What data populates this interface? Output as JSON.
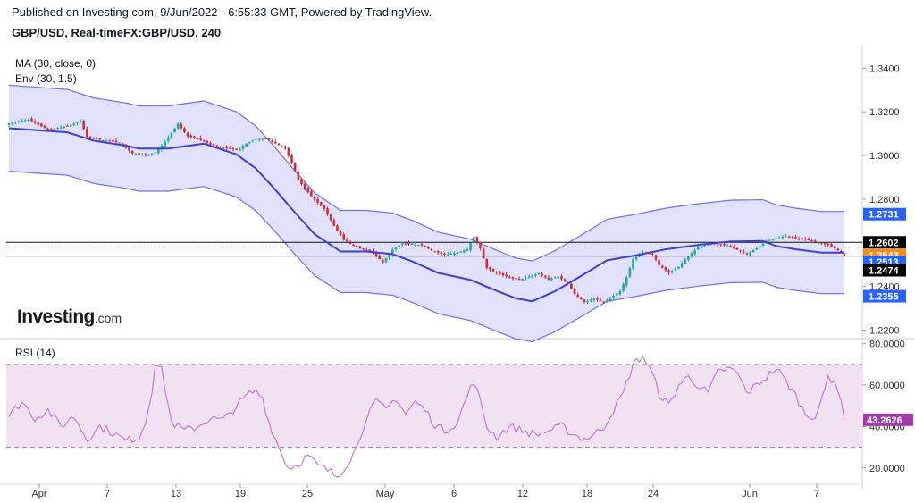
{
  "header": {
    "published": "Published on Investing.com, 9/Jun/2022 - 6:55:33 GMT, Powered by TradingView.",
    "symbol": "GBP/USD, Real-timeFX:GBP/USD, 240"
  },
  "indicators": {
    "ma_label": "MA (30, close, 0)",
    "env_label": "Env (30, 1.5)",
    "rsi_label": "RSI (14)"
  },
  "logo": {
    "main": "Investing",
    "suffix": ".com"
  },
  "colors": {
    "up": "#22ab94",
    "down": "#cc2f3c",
    "ma": "#3f3fd0",
    "envelope_line": "#6f6ff2",
    "envelope_fill": "#dcdcfb",
    "rsi_line": "#c77bd1",
    "rsi_band": "#f1e2f2",
    "last_price": "#ff8c1a",
    "rsi_value_bg": "#a33aaa",
    "marker_dark": "#000000",
    "marker_blue": "#2962ff"
  },
  "chart_data": [
    {
      "type": "candlestick",
      "title": "GBP/USD, Real-timeFX:GBP/USD, 240",
      "x_tick_labels": [
        "Apr",
        "7",
        "13",
        "19",
        "25",
        "May",
        "6",
        "12",
        "18",
        "24",
        "Jun",
        "7"
      ],
      "y_tick_labels": [
        "1.3400",
        "1.3200",
        "1.3000",
        "1.2800",
        "1.2600",
        "1.2400",
        "1.2200"
      ],
      "ylim": [
        1.2165,
        1.3475
      ],
      "price_markers": [
        {
          "label": "1.2731",
          "value": 1.2731,
          "style": "blue"
        },
        {
          "label": "1.2602",
          "value": 1.2602,
          "style": "dark",
          "line": true
        },
        {
          "label": "1.2543",
          "value": 1.2543,
          "style": "orange",
          "dotted": true
        },
        {
          "label": "1.2543",
          "value": 1.2543,
          "style": "blue",
          "line": true,
          "offset": 1
        },
        {
          "label": "1.2513",
          "value": 1.2513,
          "style": "blue"
        },
        {
          "label": "1.2474",
          "value": 1.2474,
          "style": "dark"
        },
        {
          "label": "1.2355",
          "value": 1.2355,
          "style": "blue"
        }
      ],
      "ma_anchors": [
        [
          0,
          1.3125
        ],
        [
          18,
          1.3106
        ],
        [
          26,
          1.3068
        ],
        [
          36,
          1.3045
        ],
        [
          40,
          1.3032
        ],
        [
          49,
          1.3032
        ],
        [
          60,
          1.3054
        ],
        [
          70,
          1.3005
        ],
        [
          76,
          1.294
        ],
        [
          82,
          1.2842
        ],
        [
          88,
          1.2738
        ],
        [
          94,
          1.264
        ],
        [
          102,
          1.256
        ],
        [
          110,
          1.256
        ],
        [
          118,
          1.2548
        ],
        [
          124,
          1.2515
        ],
        [
          132,
          1.2462
        ],
        [
          142,
          1.243
        ],
        [
          150,
          1.238
        ],
        [
          156,
          1.2345
        ],
        [
          161,
          1.2332
        ],
        [
          168,
          1.2378
        ],
        [
          176,
          1.2448
        ],
        [
          184,
          1.252
        ],
        [
          192,
          1.254
        ],
        [
          202,
          1.257
        ],
        [
          212,
          1.259
        ],
        [
          222,
          1.2606
        ],
        [
          232,
          1.2608
        ],
        [
          236,
          1.2585
        ],
        [
          242,
          1.257
        ],
        [
          250,
          1.2555
        ],
        [
          257,
          1.2555
        ]
      ],
      "envelope_pct": 1.5,
      "candle_anchors": [
        [
          0,
          1.3148
        ],
        [
          6,
          1.3165
        ],
        [
          12,
          1.3118
        ],
        [
          18,
          1.3135
        ],
        [
          22,
          1.3158
        ],
        [
          24,
          1.3085
        ],
        [
          28,
          1.3072
        ],
        [
          34,
          1.306
        ],
        [
          38,
          1.301
        ],
        [
          42,
          1.3
        ],
        [
          45,
          1.3015
        ],
        [
          48,
          1.3062
        ],
        [
          52,
          1.3145
        ],
        [
          55,
          1.3088
        ],
        [
          58,
          1.3078
        ],
        [
          62,
          1.305
        ],
        [
          66,
          1.3035
        ],
        [
          70,
          1.3025
        ],
        [
          73,
          1.3055
        ],
        [
          76,
          1.3075
        ],
        [
          79,
          1.3078
        ],
        [
          82,
          1.3055
        ],
        [
          85,
          1.3032
        ],
        [
          87,
          1.2965
        ],
        [
          89,
          1.289
        ],
        [
          91,
          1.2848
        ],
        [
          94,
          1.2798
        ],
        [
          97,
          1.2755
        ],
        [
          100,
          1.2678
        ],
        [
          103,
          1.2613
        ],
        [
          106,
          1.2585
        ],
        [
          109,
          1.2572
        ],
        [
          112,
          1.2555
        ],
        [
          115,
          1.251
        ],
        [
          118,
          1.2568
        ],
        [
          121,
          1.2598
        ],
        [
          124,
          1.2595
        ],
        [
          127,
          1.2588
        ],
        [
          130,
          1.2565
        ],
        [
          134,
          1.2545
        ],
        [
          138,
          1.2555
        ],
        [
          141,
          1.257
        ],
        [
          143,
          1.2628
        ],
        [
          145,
          1.2575
        ],
        [
          147,
          1.2485
        ],
        [
          150,
          1.2462
        ],
        [
          154,
          1.244
        ],
        [
          157,
          1.243
        ],
        [
          160,
          1.2445
        ],
        [
          163,
          1.246
        ],
        [
          166,
          1.2432
        ],
        [
          169,
          1.2445
        ],
        [
          172,
          1.2412
        ],
        [
          174,
          1.2365
        ],
        [
          177,
          1.2328
        ],
        [
          180,
          1.2345
        ],
        [
          183,
          1.2328
        ],
        [
          186,
          1.2358
        ],
        [
          188,
          1.2378
        ],
        [
          190,
          1.2442
        ],
        [
          192,
          1.2525
        ],
        [
          195,
          1.2555
        ],
        [
          198,
          1.2548
        ],
        [
          200,
          1.2498
        ],
        [
          203,
          1.2462
        ],
        [
          206,
          1.249
        ],
        [
          209,
          1.254
        ],
        [
          212,
          1.2578
        ],
        [
          215,
          1.2598
        ],
        [
          218,
          1.2592
        ],
        [
          221,
          1.2588
        ],
        [
          224,
          1.2568
        ],
        [
          227,
          1.2548
        ],
        [
          230,
          1.2575
        ],
        [
          233,
          1.2608
        ],
        [
          236,
          1.2622
        ],
        [
          239,
          1.263
        ],
        [
          242,
          1.262
        ],
        [
          246,
          1.2612
        ],
        [
          249,
          1.26
        ],
        [
          252,
          1.259
        ],
        [
          254,
          1.2575
        ],
        [
          257,
          1.2543
        ]
      ]
    },
    {
      "type": "line",
      "title": "RSI (14)",
      "y_tick_labels": [
        "80.0000",
        "60.0000",
        "40.0000",
        "20.0000"
      ],
      "ylim": [
        13,
        82
      ],
      "upper_band": 70,
      "lower_band": 30,
      "last_value": 43.2626,
      "last_label": "43.2626",
      "values_anchors": [
        [
          0,
          45
        ],
        [
          4,
          52
        ],
        [
          8,
          44
        ],
        [
          12,
          48
        ],
        [
          16,
          40
        ],
        [
          20,
          45
        ],
        [
          24,
          34
        ],
        [
          28,
          40
        ],
        [
          32,
          37
        ],
        [
          36,
          33
        ],
        [
          40,
          35
        ],
        [
          42,
          42
        ],
        [
          44,
          58
        ],
        [
          45,
          71
        ],
        [
          47,
          67
        ],
        [
          50,
          42
        ],
        [
          54,
          38
        ],
        [
          58,
          40
        ],
        [
          62,
          44
        ],
        [
          66,
          43
        ],
        [
          70,
          50
        ],
        [
          74,
          56
        ],
        [
          76,
          57
        ],
        [
          78,
          54
        ],
        [
          80,
          42
        ],
        [
          83,
          30
        ],
        [
          86,
          20
        ],
        [
          89,
          22
        ],
        [
          92,
          26
        ],
        [
          95,
          21
        ],
        [
          98,
          19
        ],
        [
          101,
          16
        ],
        [
          104,
          22
        ],
        [
          107,
          30
        ],
        [
          110,
          45
        ],
        [
          113,
          52
        ],
        [
          116,
          48
        ],
        [
          119,
          54
        ],
        [
          122,
          46
        ],
        [
          125,
          52
        ],
        [
          128,
          48
        ],
        [
          131,
          41
        ],
        [
          134,
          38
        ],
        [
          138,
          42
        ],
        [
          141,
          55
        ],
        [
          143,
          62
        ],
        [
          145,
          52
        ],
        [
          147,
          40
        ],
        [
          150,
          35
        ],
        [
          154,
          40
        ],
        [
          158,
          38
        ],
        [
          162,
          36
        ],
        [
          166,
          38
        ],
        [
          170,
          40
        ],
        [
          174,
          36
        ],
        [
          177,
          34
        ],
        [
          180,
          36
        ],
        [
          183,
          40
        ],
        [
          186,
          48
        ],
        [
          189,
          56
        ],
        [
          192,
          70
        ],
        [
          195,
          74
        ],
        [
          198,
          65
        ],
        [
          200,
          56
        ],
        [
          203,
          50
        ],
        [
          206,
          60
        ],
        [
          209,
          64
        ],
        [
          212,
          60
        ],
        [
          215,
          56
        ],
        [
          218,
          66
        ],
        [
          221,
          68
        ],
        [
          224,
          66
        ],
        [
          227,
          56
        ],
        [
          230,
          60
        ],
        [
          233,
          64
        ],
        [
          236,
          68
        ],
        [
          239,
          62
        ],
        [
          242,
          55
        ],
        [
          245,
          46
        ],
        [
          248,
          45
        ],
        [
          250,
          52
        ],
        [
          252,
          64
        ],
        [
          254,
          62
        ],
        [
          255,
          58
        ],
        [
          257,
          43.26
        ]
      ]
    }
  ]
}
